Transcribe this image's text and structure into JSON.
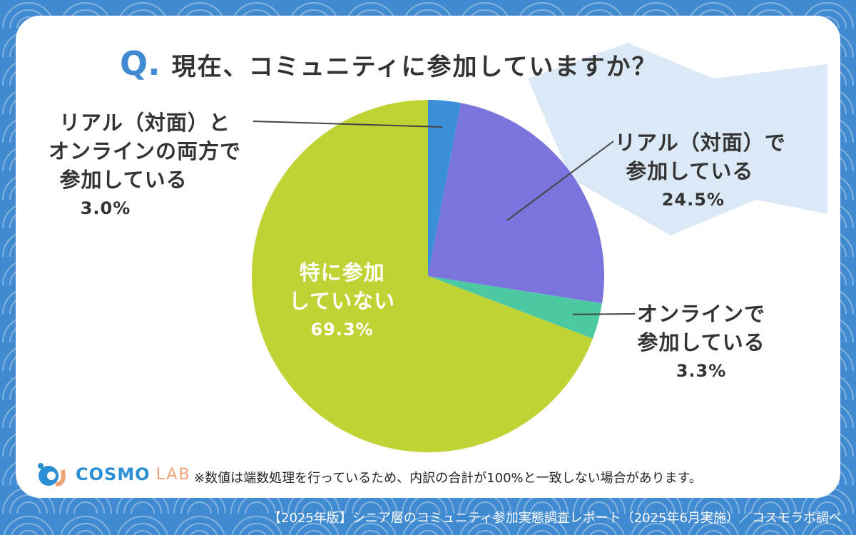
{
  "title": {
    "q": "Q.",
    "text": "現在、コミュニティに参加していますか？"
  },
  "chart_data": {
    "type": "pie",
    "title": "現在、コミュニティに参加していますか？",
    "start": "top",
    "direction": "clockwise",
    "slices": [
      {
        "label": "リアル（対面）とオンラインの両方で参加している",
        "lines": [
          "リアル（対面）と",
          "オンラインの両方で",
          "参加している"
        ],
        "value": 3.0,
        "value_label": "3.0%",
        "color": "#3a8fd8"
      },
      {
        "label": "リアル（対面）で参加している",
        "lines": [
          "リアル（対面）で",
          "参加している"
        ],
        "value": 24.5,
        "value_label": "24.5%",
        "color": "#7b74dc"
      },
      {
        "label": "オンラインで参加している",
        "lines": [
          "オンラインで",
          "参加している"
        ],
        "value": 3.3,
        "value_label": "3.3%",
        "color": "#4cc8a2"
      },
      {
        "label": "特に参加していない",
        "lines": [
          "特に参加",
          "していない"
        ],
        "value": 69.3,
        "value_label": "69.3%",
        "color": "#bfd334"
      }
    ]
  },
  "logo": {
    "main": "COSMO",
    "sub": "LAB"
  },
  "note": "※数値は端数処理を行っているため、内訳の合計が100%と一致しない場合があります。",
  "footer": "【2025年版】シニア層のコミュニティ参加実態調査レポート（2025年6月実施）／コスモラボ調べ"
}
